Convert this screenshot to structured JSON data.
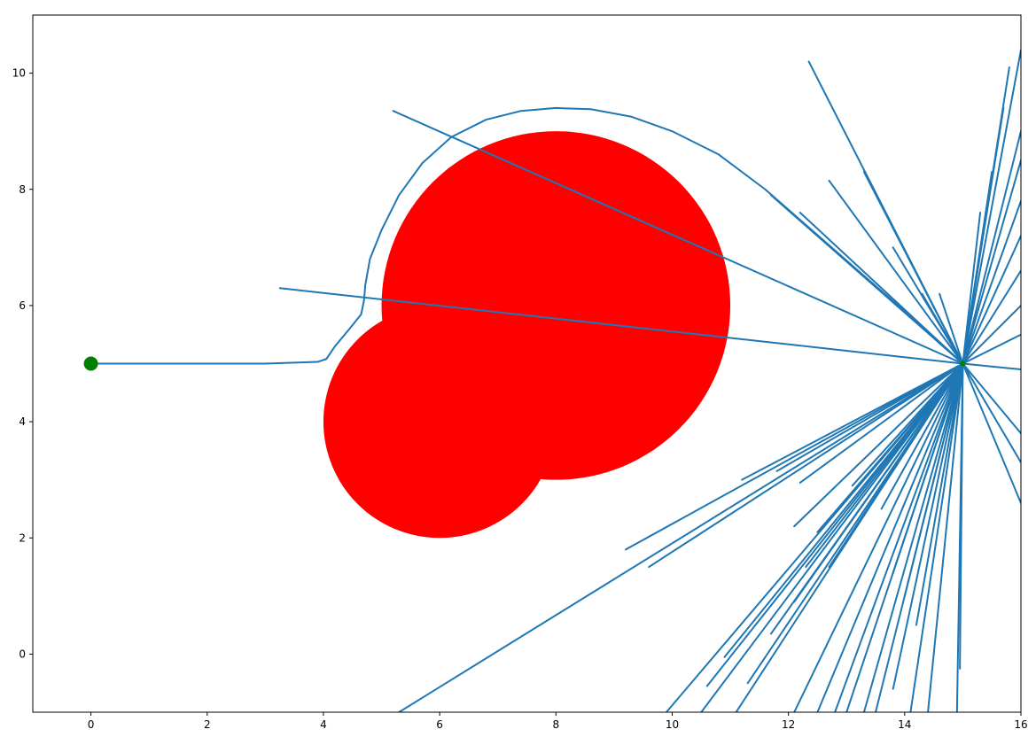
{
  "chart_data": {
    "type": "line",
    "title": "",
    "xlabel": "",
    "ylabel": "",
    "xlim": [
      -1,
      16
    ],
    "ylim": [
      -1,
      11
    ],
    "grid": false,
    "legend": "none",
    "x_ticks": [
      "0",
      "2",
      "4",
      "6",
      "8",
      "10",
      "12",
      "14",
      "16"
    ],
    "x_tick_values": [
      0,
      2,
      4,
      6,
      8,
      10,
      12,
      14,
      16
    ],
    "y_ticks": [
      "0",
      "2",
      "4",
      "6",
      "8",
      "10"
    ],
    "y_tick_values": [
      0,
      2,
      4,
      6,
      8,
      10
    ],
    "colors": {
      "path": "#1f77b4",
      "obstacle": "#ff0000",
      "marker": "#008000"
    },
    "obstacles": [
      {
        "cx": 6,
        "cy": 4,
        "r": 2
      },
      {
        "cx": 8,
        "cy": 6,
        "r": 3
      }
    ],
    "markers": [
      {
        "x": 0,
        "y": 5
      },
      {
        "x": 15,
        "y": 5
      }
    ],
    "main_path": [
      [
        0,
        5
      ],
      [
        3.0,
        5.0
      ],
      [
        3.9,
        5.03
      ],
      [
        4.05,
        5.08
      ],
      [
        4.2,
        5.3
      ],
      [
        4.45,
        5.6
      ],
      [
        4.65,
        5.85
      ],
      [
        4.7,
        6.1
      ],
      [
        4.72,
        6.35
      ],
      [
        4.8,
        6.8
      ],
      [
        5.0,
        7.3
      ],
      [
        5.3,
        7.9
      ],
      [
        5.7,
        8.45
      ],
      [
        6.2,
        8.9
      ],
      [
        6.8,
        9.2
      ],
      [
        7.4,
        9.35
      ],
      [
        8.0,
        9.4
      ],
      [
        8.6,
        9.38
      ],
      [
        9.3,
        9.25
      ],
      [
        10.0,
        9.0
      ],
      [
        10.8,
        8.6
      ],
      [
        11.6,
        8.0
      ],
      [
        12.4,
        7.3
      ],
      [
        13.2,
        6.6
      ],
      [
        14.0,
        5.9
      ],
      [
        14.6,
        5.35
      ],
      [
        15.0,
        5.0
      ]
    ],
    "spikes_from": [
      15,
      5
    ],
    "spike_ends": [
      [
        5.2,
        9.35
      ],
      [
        3.25,
        6.3
      ],
      [
        12.35,
        10.2
      ],
      [
        11.7,
        7.9
      ],
      [
        12.7,
        8.15
      ],
      [
        12.2,
        7.6
      ],
      [
        13.3,
        8.3
      ],
      [
        13.8,
        7.0
      ],
      [
        14.3,
        6.2
      ],
      [
        14.6,
        6.2
      ],
      [
        16.0,
        4.9
      ],
      [
        16.0,
        3.8
      ],
      [
        16.0,
        2.6
      ],
      [
        16.0,
        3.3
      ],
      [
        16.0,
        5.5
      ],
      [
        16.0,
        6.0
      ],
      [
        16.0,
        6.6
      ],
      [
        16.0,
        7.2
      ],
      [
        16.0,
        7.8
      ],
      [
        16.0,
        8.5
      ],
      [
        16.0,
        9.0
      ],
      [
        15.8,
        10.1
      ],
      [
        16.0,
        10.4
      ],
      [
        15.7,
        9.4
      ],
      [
        15.5,
        8.3
      ],
      [
        15.3,
        7.6
      ],
      [
        14.95,
        -0.25
      ],
      [
        14.9,
        -1.0
      ],
      [
        14.4,
        -1.0
      ],
      [
        14.1,
        -1.0
      ],
      [
        13.8,
        -0.6
      ],
      [
        13.5,
        -1.0
      ],
      [
        13.3,
        -1.0
      ],
      [
        13.0,
        -1.0
      ],
      [
        12.8,
        -1.0
      ],
      [
        12.5,
        -1.0
      ],
      [
        12.1,
        -1.0
      ],
      [
        11.3,
        -0.5
      ],
      [
        10.9,
        -0.05
      ],
      [
        10.6,
        -0.55
      ],
      [
        9.9,
        -1.0
      ],
      [
        10.5,
        -1.0
      ],
      [
        11.1,
        -1.0
      ],
      [
        5.3,
        -1.0
      ],
      [
        11.7,
        0.35
      ],
      [
        12.1,
        0.9
      ],
      [
        12.1,
        2.2
      ],
      [
        12.3,
        1.5
      ],
      [
        12.5,
        2.1
      ],
      [
        12.7,
        1.5
      ],
      [
        13.6,
        2.5
      ],
      [
        13.8,
        1.4
      ],
      [
        14.2,
        0.5
      ],
      [
        14.0,
        1.0
      ],
      [
        9.2,
        1.8
      ],
      [
        11.8,
        3.15
      ],
      [
        12.2,
        2.95
      ],
      [
        13.1,
        2.9
      ],
      [
        11.2,
        3.0
      ],
      [
        9.6,
        1.5
      ]
    ]
  }
}
